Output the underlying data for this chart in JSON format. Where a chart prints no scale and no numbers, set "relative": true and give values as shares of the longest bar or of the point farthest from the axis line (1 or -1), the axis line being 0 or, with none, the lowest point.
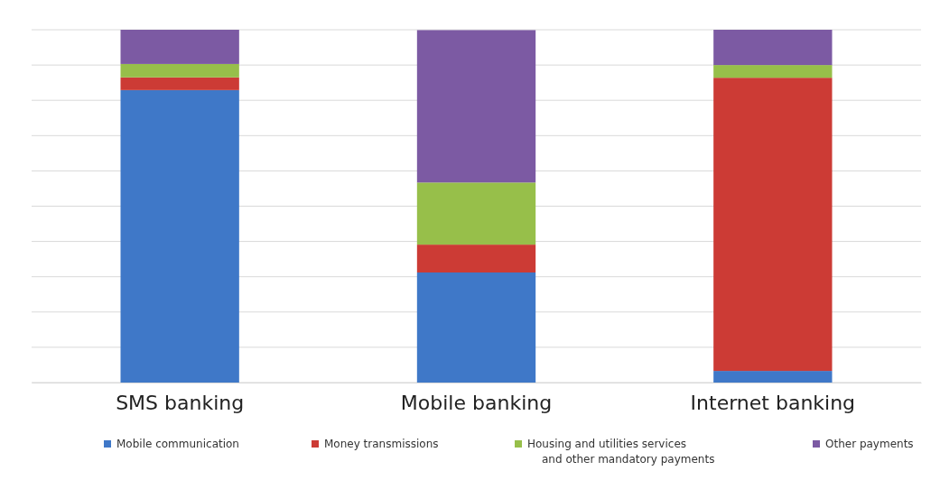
{
  "chart_data": {
    "type": "bar",
    "stacked": true,
    "relative": true,
    "grid": "y",
    "legend": "bottom",
    "categories": [
      "SMS banking",
      "Mobile banking",
      "Internet banking"
    ],
    "series": [
      {
        "name": "Mobile communication",
        "color": "#3f78c8",
        "values": [
          0.829,
          0.312,
          0.033
        ]
      },
      {
        "name": "Money transmissions",
        "color": "#cc3b35",
        "values": [
          0.036,
          0.079,
          0.831
        ]
      },
      {
        "name": "Housing and utilities services and other mandatory payments",
        "color": "#97bf4a",
        "values": [
          0.038,
          0.176,
          0.036
        ]
      },
      {
        "name": "Other payments",
        "color": "#7c5aa3",
        "values": [
          0.097,
          0.432,
          0.1
        ]
      }
    ]
  }
}
